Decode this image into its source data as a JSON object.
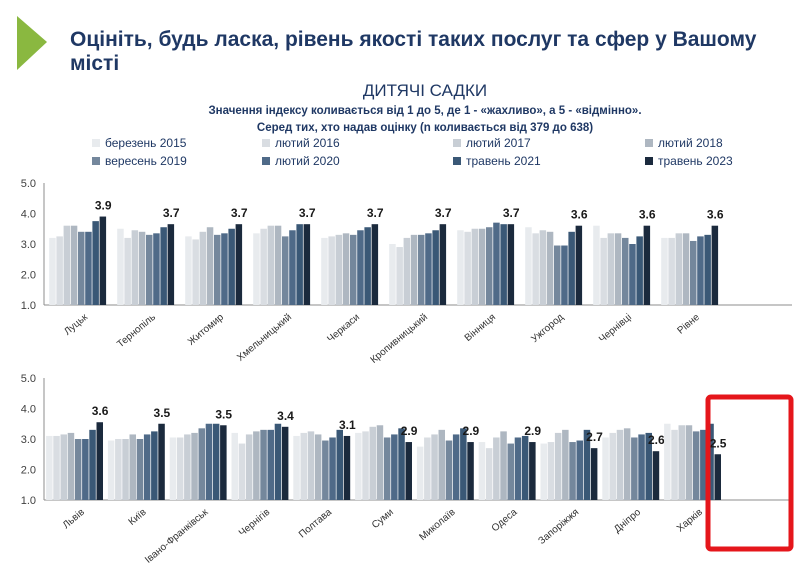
{
  "slide": {
    "title": "Оцініть, будь ласка, рівень якості таких послуг та сфер у Вашому місті",
    "accent_color": "#8ab840",
    "title_color": "#1f3864",
    "highlight_color": "#e5161b"
  },
  "chart_data": {
    "type": "bar",
    "title": "ДИТЯЧІ САДКИ",
    "subtitle": [
      "Значення індексу коливається від 1 до 5, де 1 - «жахливо», а 5 - «відмінно».",
      "Серед тих, хто надав оцінку (n коливається від 379 до 638)"
    ],
    "legend": {
      "placement": "top",
      "entries": [
        "березень 2015",
        "лютий 2016",
        "лютий 2017",
        "лютий 2018",
        "вересень 2019",
        "лютий 2020",
        "травень 2021",
        "травень 2023"
      ]
    },
    "series_colors": [
      "#e8ebee",
      "#d9dde2",
      "#c8ced5",
      "#aeb7c1",
      "#74879c",
      "#4f6a88",
      "#3a5876",
      "#1b2a3d"
    ],
    "ylim": [
      1,
      5
    ],
    "yticks": [
      "1.0",
      "2.0",
      "3.0",
      "4.0",
      "5.0"
    ],
    "grid": false,
    "highlighted_city": "Харків",
    "panels": [
      {
        "cities": [
          "Луцьк",
          "Тернопіль",
          "Житомир",
          "Хмельницький",
          "Черкаси",
          "Кропивницький",
          "Вінниця",
          "Ужгород",
          "Чернівці",
          "Рівне"
        ],
        "labels": [
          "3.9",
          "3.7",
          "3.7",
          "3.7",
          "3.7",
          "3.7",
          "3.7",
          "3.6",
          "3.6",
          "3.6"
        ],
        "values": [
          [
            3.2,
            3.25,
            3.6,
            3.6,
            3.4,
            3.4,
            3.75,
            3.9
          ],
          [
            3.5,
            3.2,
            3.45,
            3.4,
            3.3,
            3.35,
            3.55,
            3.65
          ],
          [
            3.25,
            3.15,
            3.4,
            3.55,
            3.3,
            3.35,
            3.5,
            3.65
          ],
          [
            3.35,
            3.5,
            3.6,
            3.6,
            3.25,
            3.45,
            3.65,
            3.65
          ],
          [
            3.2,
            3.25,
            3.3,
            3.35,
            3.3,
            3.45,
            3.55,
            3.65
          ],
          [
            3.0,
            2.9,
            3.2,
            3.3,
            3.3,
            3.35,
            3.45,
            3.65
          ],
          [
            3.45,
            3.4,
            3.5,
            3.5,
            3.55,
            3.7,
            3.65,
            3.65
          ],
          [
            3.55,
            3.35,
            3.45,
            3.4,
            2.95,
            2.95,
            3.4,
            3.6
          ],
          [
            3.6,
            3.2,
            3.35,
            3.35,
            3.2,
            3.0,
            3.25,
            3.6
          ],
          [
            3.2,
            3.2,
            3.35,
            3.35,
            3.1,
            3.25,
            3.3,
            3.6
          ]
        ]
      },
      {
        "cities": [
          "Львів",
          "Київ",
          "Івано-Франківськ",
          "Чернігів",
          "Полтава",
          "Суми",
          "Миколаїв",
          "Одеса",
          "Запоріжжя",
          "Дніпро",
          "Харків"
        ],
        "labels": [
          "3.6",
          "3.5",
          "3.5",
          "3.4",
          "3.1",
          "2.9",
          "2.9",
          "2.9",
          "2.7",
          "2.6",
          "2.5"
        ],
        "values": [
          [
            3.1,
            3.1,
            3.15,
            3.2,
            3.0,
            3.0,
            3.3,
            3.55
          ],
          [
            2.95,
            3.0,
            3.0,
            3.15,
            3.0,
            3.15,
            3.25,
            3.5
          ],
          [
            3.05,
            3.05,
            3.15,
            3.2,
            3.35,
            3.5,
            3.5,
            3.45
          ],
          [
            3.2,
            2.85,
            3.15,
            3.25,
            3.3,
            3.3,
            3.5,
            3.4
          ],
          [
            3.1,
            3.2,
            3.25,
            3.15,
            2.95,
            3.05,
            3.3,
            3.1
          ],
          [
            3.2,
            3.25,
            3.4,
            3.45,
            3.05,
            3.15,
            3.35,
            2.9
          ],
          [
            2.75,
            3.05,
            3.15,
            3.3,
            2.95,
            3.15,
            3.35,
            2.9
          ],
          [
            2.9,
            2.7,
            3.05,
            3.25,
            2.85,
            3.05,
            3.1,
            2.9
          ],
          [
            2.85,
            2.9,
            3.2,
            3.3,
            2.9,
            2.95,
            3.3,
            2.7
          ],
          [
            3.05,
            3.2,
            3.3,
            3.35,
            3.05,
            3.15,
            3.2,
            2.6
          ],
          [
            3.5,
            3.3,
            3.45,
            3.45,
            3.25,
            3.3,
            3.5,
            2.5
          ]
        ]
      }
    ]
  }
}
